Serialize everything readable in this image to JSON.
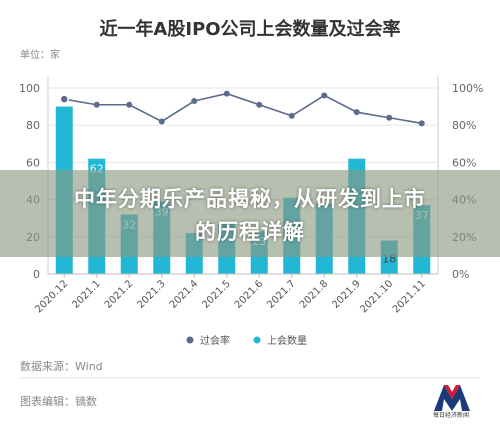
{
  "chart_data": {
    "type": "bar",
    "title": "近一年A股IPO公司上会数量及过会率",
    "unit_label": "单位：家",
    "categories": [
      "2020.12",
      "2021.1",
      "2021.2",
      "2021.3",
      "2021.4",
      "2021.5",
      "2021.6",
      "2021.7",
      "2021.8",
      "2021.9",
      "2021.10",
      "2021.11"
    ],
    "series": [
      {
        "name": "上会数量",
        "type": "bar",
        "axis": "left",
        "color": "#23b7d6",
        "values": [
          90,
          62,
          32,
          39,
          22,
          27,
          23,
          41,
          38,
          62,
          18,
          37
        ]
      },
      {
        "name": "过会率",
        "type": "line",
        "axis": "right",
        "color": "#5c6b8a",
        "values": [
          94,
          91,
          91,
          82,
          93,
          97,
          91,
          85,
          96,
          87,
          84,
          81
        ]
      }
    ],
    "visible_bar_labels": {
      "1": "62",
      "2": "32",
      "3": "39",
      "6": "23",
      "10": "18",
      "11": "37"
    },
    "left_axis": {
      "ticks": [
        "0",
        "20",
        "40",
        "60",
        "80",
        "100"
      ],
      "ylim": [
        0,
        100
      ]
    },
    "right_axis": {
      "ticks": [
        "0%",
        "20%",
        "40%",
        "60%",
        "80%",
        "100%"
      ],
      "ylim": [
        0,
        100
      ]
    },
    "grid": true,
    "legend_position": "bottom"
  },
  "overlay": {
    "line1": "中年分期乐产品揭秘，从研发到上市",
    "line2": "的历程详解"
  },
  "footer": {
    "source": "数据来源：Wind",
    "author": "图表编辑：镝数",
    "logo_text": "每日经济新闻"
  },
  "colors": {
    "bar": "#23b7d6",
    "line": "#5c6b8a",
    "logo_red": "#d7192f",
    "logo_navy": "#1b3a7a"
  }
}
